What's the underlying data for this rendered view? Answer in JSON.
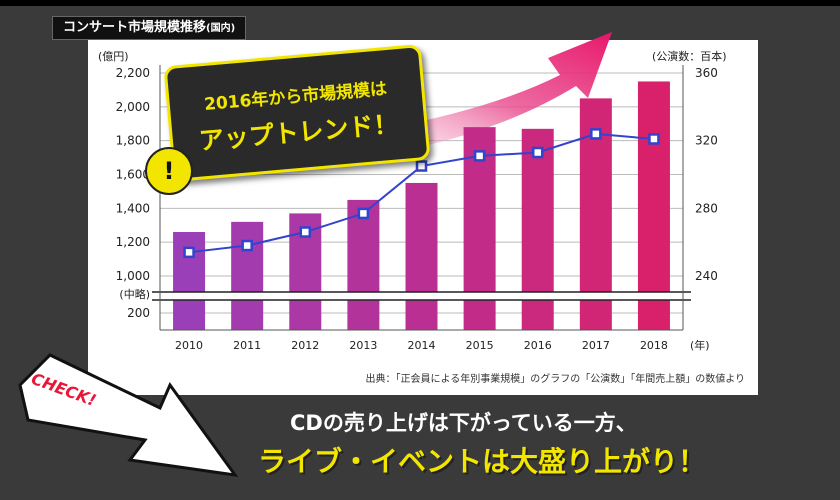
{
  "title": "コンサート市場規模推移",
  "title_suffix": "(国内)",
  "source_note": "出典：「正会員による年別事業規模」のグラフの「公演数」「年間売上額」の数値より",
  "callout": {
    "line1": "2016年から市場規模は",
    "line2": "アップトレンド！",
    "bang": "!"
  },
  "badge": "CHECK!",
  "headline": {
    "line1": "CDの売り上げは下がっている一方、",
    "line2": "ライブ・イベントは大盛り上がり！"
  },
  "colors": {
    "bar_purple": "#9b3fb8",
    "bar_pink": "#d9216b",
    "line": "#3344cc",
    "callout_yellow": "#f2e600",
    "background": "#3a3a3a"
  },
  "chart_data": {
    "type": "bar",
    "title": "コンサート市場規模推移(国内)",
    "categories": [
      "2010",
      "2011",
      "2012",
      "2013",
      "2014",
      "2015",
      "2016",
      "2017",
      "2018"
    ],
    "series": [
      {
        "type": "bar",
        "axis": "left",
        "values": [
          1260,
          1320,
          1370,
          1450,
          1550,
          1880,
          1870,
          2050,
          2150
        ]
      },
      {
        "type": "line",
        "axis": "right",
        "values": [
          254,
          258,
          266,
          277,
          305,
          311,
          313,
          324,
          321
        ]
      }
    ],
    "ylabel_left": "(億円)",
    "ylabel_right": "(公演数：百本)",
    "xlabel": "(年)",
    "left_ticks": [
      "2,200",
      "2,000",
      "1,800",
      "1,600",
      "1,400",
      "1,200",
      "1,000"
    ],
    "left_tick_values": [
      2200,
      2000,
      1800,
      1600,
      1400,
      1200,
      1000
    ],
    "left_lower_tick": "200",
    "break_label": "(中略)",
    "right_ticks": [
      "360",
      "320",
      "280",
      "240"
    ],
    "right_tick_values": [
      360,
      320,
      280,
      240
    ],
    "ylim_left": [
      1000,
      2200
    ],
    "ylim_right": [
      240,
      360
    ],
    "grid": true,
    "axis_break": true
  }
}
